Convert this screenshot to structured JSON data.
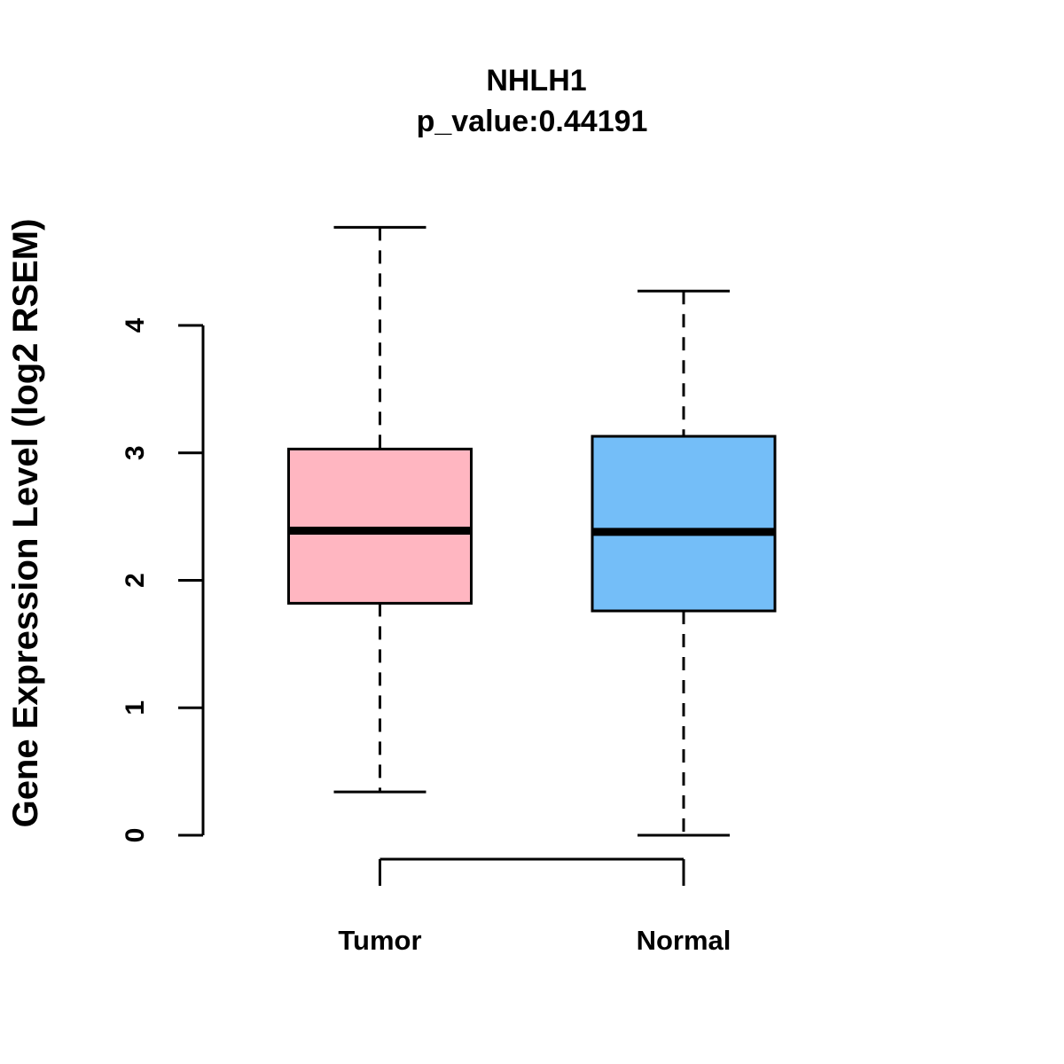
{
  "chart_data": {
    "type": "boxplot",
    "title": "NHLH1",
    "subtitle": "p_value:0.44191",
    "p_value": 0.44191,
    "ylabel": "Gene Expression Level (log2 RSEM)",
    "xlabel": "",
    "categories": [
      "Tumor",
      "Normal"
    ],
    "series": [
      {
        "name": "Tumor",
        "min": 0.34,
        "q1": 1.82,
        "median": 2.39,
        "q3": 3.03,
        "max": 4.77,
        "color": "#FFB6C1"
      },
      {
        "name": "Normal",
        "min": 0.0,
        "q1": 1.76,
        "median": 2.38,
        "q3": 3.13,
        "max": 4.27,
        "color": "#74BEF8"
      }
    ],
    "yticks": [
      0,
      1,
      2,
      3,
      4
    ],
    "ylim": [
      0,
      4.8
    ],
    "grid": false,
    "legend": false,
    "colors": {
      "tumor_fill": "#FFB6C1",
      "normal_fill": "#74BEF8",
      "stroke": "#000000",
      "background": "#FFFFFF"
    }
  }
}
